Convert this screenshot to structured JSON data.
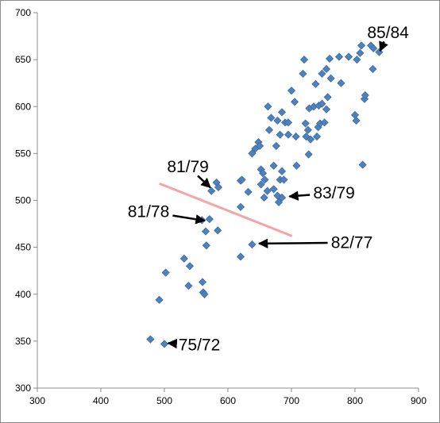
{
  "chart_data": {
    "type": "scatter",
    "title": "",
    "xlabel": "",
    "ylabel": "",
    "xlim": [
      300,
      900
    ],
    "ylim": [
      300,
      700
    ],
    "x_ticks": [
      "300",
      "400",
      "500",
      "600",
      "700",
      "800",
      "900"
    ],
    "y_ticks": [
      "300",
      "350",
      "400",
      "450",
      "500",
      "550",
      "600",
      "650",
      "700"
    ],
    "grid": "none",
    "legend": "none",
    "marker_color": "#4f81bd",
    "marker_edge_color": "#3a6ba8",
    "series": [
      {
        "points": [
          [
            478,
            352
          ],
          [
            500,
            347
          ],
          [
            492,
            394
          ],
          [
            502,
            423
          ],
          [
            531,
            438
          ],
          [
            540,
            430
          ],
          [
            538,
            409
          ],
          [
            560,
            413
          ],
          [
            561,
            402
          ],
          [
            563,
            400
          ],
          [
            566,
            452
          ],
          [
            565,
            467
          ],
          [
            559,
            479
          ],
          [
            571,
            480
          ],
          [
            584,
            468
          ],
          [
            574,
            510
          ],
          [
            582,
            519
          ],
          [
            585,
            514
          ],
          [
            620,
            440
          ],
          [
            638,
            453
          ],
          [
            620,
            493
          ],
          [
            620,
            521
          ],
          [
            622,
            522
          ],
          [
            632,
            509
          ],
          [
            638,
            550
          ],
          [
            643,
            555
          ],
          [
            648,
            562
          ],
          [
            650,
            558
          ],
          [
            652,
            517
          ],
          [
            652,
            533
          ],
          [
            655,
            529
          ],
          [
            657,
            503
          ],
          [
            658,
            522
          ],
          [
            662,
            510
          ],
          [
            663,
            600
          ],
          [
            665,
            575
          ],
          [
            668,
            588
          ],
          [
            672,
            537
          ],
          [
            672,
            512
          ],
          [
            676,
            558
          ],
          [
            678,
            585
          ],
          [
            678,
            505
          ],
          [
            680,
            498
          ],
          [
            682,
            570
          ],
          [
            682,
            522
          ],
          [
            685,
            594
          ],
          [
            685,
            531
          ],
          [
            685,
            503
          ],
          [
            688,
            522
          ],
          [
            690,
            583
          ],
          [
            695,
            570
          ],
          [
            695,
            583
          ],
          [
            700,
            617
          ],
          [
            708,
            537
          ],
          [
            705,
            605
          ],
          [
            707,
            568
          ],
          [
            718,
            635
          ],
          [
            720,
            650
          ],
          [
            722,
            582
          ],
          [
            723,
            568
          ],
          [
            726,
            575
          ],
          [
            727,
            549
          ],
          [
            728,
            598
          ],
          [
            730,
            565
          ],
          [
            735,
            600
          ],
          [
            738,
            624
          ],
          [
            740,
            568
          ],
          [
            742,
            578
          ],
          [
            743,
            601
          ],
          [
            745,
            582
          ],
          [
            748,
            603
          ],
          [
            748,
            635
          ],
          [
            752,
            583
          ],
          [
            755,
            597
          ],
          [
            755,
            640
          ],
          [
            757,
            610
          ],
          [
            760,
            651
          ],
          [
            762,
            630
          ],
          [
            775,
            653
          ],
          [
            778,
            625
          ],
          [
            790,
            653
          ],
          [
            800,
            591
          ],
          [
            802,
            585
          ],
          [
            803,
            650
          ],
          [
            808,
            657
          ],
          [
            810,
            665
          ],
          [
            812,
            538
          ],
          [
            815,
            608
          ],
          [
            816,
            612
          ],
          [
            825,
            665
          ],
          [
            828,
            640
          ],
          [
            829,
            662
          ],
          [
            838,
            658
          ]
        ]
      }
    ],
    "trend_line": {
      "color": "#f4a6a6",
      "from": [
        492,
        518
      ],
      "to": [
        701,
        462
      ]
    },
    "annotations": [
      {
        "text": "85/84",
        "text_at": [
          852,
          679
        ],
        "arrow_to": [
          838,
          657
        ]
      },
      {
        "text": "81/79",
        "text_at": [
          537,
          536
        ],
        "arrow_to": [
          575,
          512
        ]
      },
      {
        "text": "83/79",
        "text_at": [
          767,
          508
        ],
        "arrow_to": [
          693,
          504
        ]
      },
      {
        "text": "81/78",
        "text_at": [
          475,
          488
        ],
        "arrow_to": [
          567,
          478
        ]
      },
      {
        "text": "82/77",
        "text_at": [
          795,
          455
        ],
        "arrow_to": [
          645,
          454
        ]
      },
      {
        "text": "75/72",
        "text_at": [
          555,
          346
        ],
        "arrow_to": [
          502,
          348
        ]
      }
    ]
  }
}
